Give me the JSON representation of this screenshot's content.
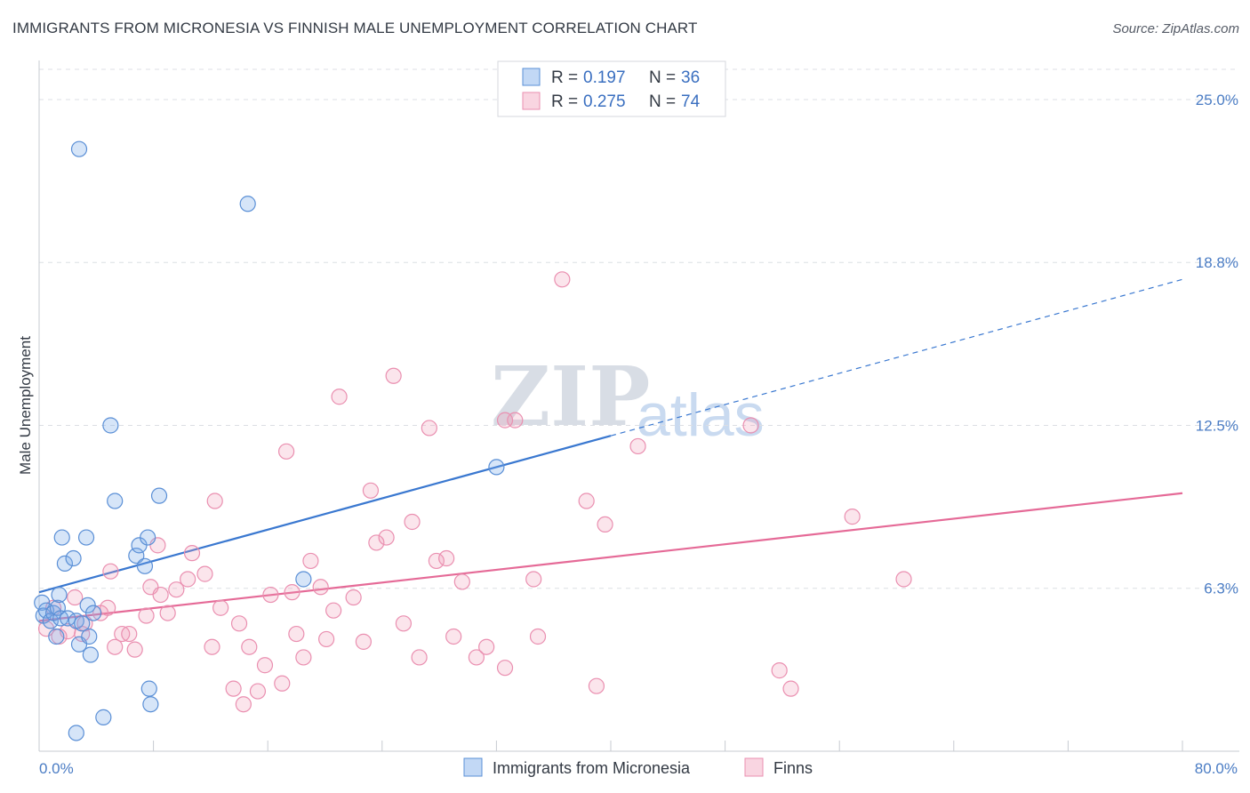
{
  "header": {
    "title": "IMMIGRANTS FROM MICRONESIA VS FINNISH MALE UNEMPLOYMENT CORRELATION CHART",
    "source": "Source: ZipAtlas.com"
  },
  "watermark": {
    "part1": "ZIP",
    "part2": "atlas"
  },
  "colors": {
    "blue": "#3a78d0",
    "pink": "#e56a97"
  },
  "chart_data": {
    "type": "scatter",
    "ylabel": "Male Unemployment",
    "xlim": [
      0,
      80
    ],
    "ylim": [
      0,
      26.5
    ],
    "y_ticks": [
      {
        "value": 6.25,
        "label": "6.3%"
      },
      {
        "value": 12.5,
        "label": "12.5%"
      },
      {
        "value": 18.75,
        "label": "18.8%"
      },
      {
        "value": 25.0,
        "label": "25.0%"
      }
    ],
    "x_tick_values": [
      0,
      8,
      16,
      24,
      32,
      40,
      48,
      56,
      64,
      72,
      80
    ],
    "x_end_labels": {
      "left": "0.0%",
      "right": "80.0%"
    },
    "legend": {
      "series1": {
        "r_label": "R =",
        "r_value": "0.197",
        "n_label": "N =",
        "n_value": "36"
      },
      "series2": {
        "r_label": "R =",
        "r_value": "0.275",
        "n_label": "N =",
        "n_value": "74"
      }
    },
    "series": [
      {
        "name": "Immigrants from Micronesia",
        "color": "#5a8fd6",
        "trend": {
          "x0": 0,
          "y0": 6.1,
          "x1": 40,
          "y1": 12.1,
          "dashed_to_x": 80,
          "dashed_to_y": 18.1
        },
        "points": [
          [
            0.2,
            5.7
          ],
          [
            0.3,
            5.2
          ],
          [
            0.5,
            5.4
          ],
          [
            0.8,
            5.0
          ],
          [
            1.0,
            5.3
          ],
          [
            1.2,
            4.4
          ],
          [
            1.3,
            5.5
          ],
          [
            1.4,
            6.0
          ],
          [
            1.5,
            5.1
          ],
          [
            1.6,
            8.2
          ],
          [
            1.8,
            7.2
          ],
          [
            2.0,
            5.1
          ],
          [
            2.4,
            7.4
          ],
          [
            2.6,
            5.0
          ],
          [
            2.8,
            4.1
          ],
          [
            3.0,
            4.9
          ],
          [
            3.3,
            8.2
          ],
          [
            3.4,
            5.6
          ],
          [
            3.5,
            4.4
          ],
          [
            3.6,
            3.7
          ],
          [
            3.8,
            5.3
          ],
          [
            4.5,
            1.3
          ],
          [
            5.0,
            12.5
          ],
          [
            5.3,
            9.6
          ],
          [
            6.8,
            7.5
          ],
          [
            7.0,
            7.9
          ],
          [
            7.4,
            7.1
          ],
          [
            7.6,
            8.2
          ],
          [
            7.7,
            2.4
          ],
          [
            7.8,
            1.8
          ],
          [
            8.4,
            9.8
          ],
          [
            14.6,
            21.0
          ],
          [
            18.5,
            6.6
          ],
          [
            32.0,
            10.9
          ],
          [
            2.8,
            23.1
          ],
          [
            2.6,
            0.7
          ]
        ]
      },
      {
        "name": "Finns",
        "color": "#ea8fb0",
        "trend": {
          "x0": 0,
          "y0": 5.0,
          "x1": 80,
          "y1": 9.9
        },
        "points": [
          [
            0.5,
            4.7
          ],
          [
            1.0,
            5.5
          ],
          [
            1.4,
            4.4
          ],
          [
            2.0,
            4.6
          ],
          [
            2.5,
            5.9
          ],
          [
            3.0,
            4.5
          ],
          [
            3.2,
            4.9
          ],
          [
            4.3,
            5.3
          ],
          [
            4.8,
            5.5
          ],
          [
            5.0,
            6.9
          ],
          [
            5.3,
            4.0
          ],
          [
            5.8,
            4.5
          ],
          [
            6.3,
            4.5
          ],
          [
            6.7,
            3.9
          ],
          [
            7.5,
            5.2
          ],
          [
            7.8,
            6.3
          ],
          [
            8.3,
            7.9
          ],
          [
            8.5,
            6.0
          ],
          [
            9.0,
            5.3
          ],
          [
            9.6,
            6.2
          ],
          [
            10.4,
            6.6
          ],
          [
            10.7,
            7.6
          ],
          [
            11.6,
            6.8
          ],
          [
            12.1,
            4.0
          ],
          [
            12.3,
            9.6
          ],
          [
            12.7,
            5.5
          ],
          [
            13.6,
            2.4
          ],
          [
            14.0,
            4.9
          ],
          [
            14.3,
            1.8
          ],
          [
            14.7,
            4.0
          ],
          [
            15.3,
            2.3
          ],
          [
            15.8,
            3.3
          ],
          [
            16.2,
            6.0
          ],
          [
            17.0,
            2.6
          ],
          [
            17.3,
            11.5
          ],
          [
            17.7,
            6.1
          ],
          [
            18.0,
            4.5
          ],
          [
            18.5,
            3.6
          ],
          [
            19.0,
            7.3
          ],
          [
            19.7,
            6.3
          ],
          [
            20.1,
            4.3
          ],
          [
            20.6,
            5.4
          ],
          [
            21.0,
            13.6
          ],
          [
            22.0,
            5.9
          ],
          [
            22.7,
            4.2
          ],
          [
            23.2,
            10.0
          ],
          [
            23.6,
            8.0
          ],
          [
            24.3,
            8.2
          ],
          [
            24.8,
            14.4
          ],
          [
            25.5,
            4.9
          ],
          [
            26.1,
            8.8
          ],
          [
            26.6,
            3.6
          ],
          [
            27.3,
            12.4
          ],
          [
            27.8,
            7.3
          ],
          [
            28.5,
            7.4
          ],
          [
            29.0,
            4.4
          ],
          [
            29.6,
            6.5
          ],
          [
            30.6,
            3.6
          ],
          [
            31.3,
            4.0
          ],
          [
            32.6,
            3.2
          ],
          [
            33.3,
            12.7
          ],
          [
            34.6,
            6.6
          ],
          [
            34.9,
            4.4
          ],
          [
            36.6,
            18.1
          ],
          [
            38.3,
            9.6
          ],
          [
            39.0,
            2.5
          ],
          [
            39.6,
            8.7
          ],
          [
            41.9,
            11.7
          ],
          [
            49.8,
            12.5
          ],
          [
            51.8,
            3.1
          ],
          [
            52.6,
            2.4
          ],
          [
            56.9,
            9.0
          ],
          [
            60.5,
            6.6
          ],
          [
            32.6,
            12.7
          ]
        ]
      }
    ]
  }
}
